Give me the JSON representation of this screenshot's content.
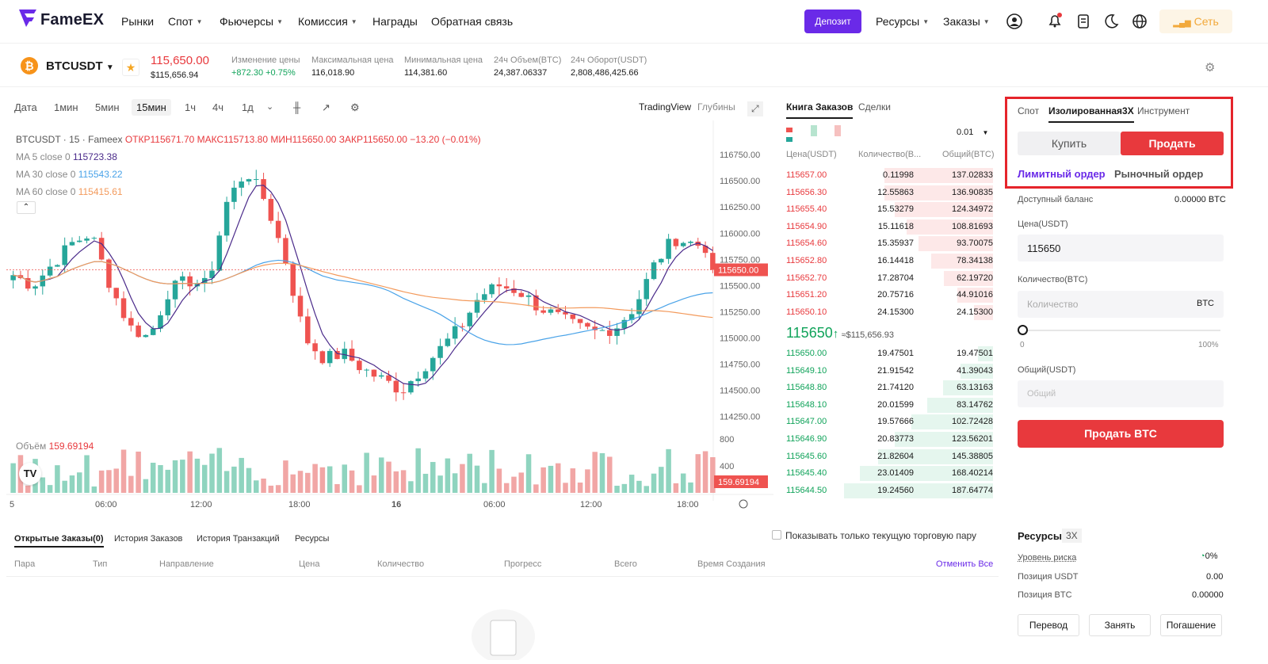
{
  "nav": {
    "brand": "FameEX",
    "items": [
      "Рынки",
      "Спот",
      "Фьючерсы",
      "Комиссия",
      "Награды",
      "Обратная связь"
    ],
    "deposit": "Депозит",
    "resources": "Ресурсы",
    "orders": "Заказы",
    "network": "Сеть"
  },
  "ticker": {
    "symbol": "BTCUSDT",
    "price": "115,650.00",
    "price_usd": "$115,656.94",
    "stats": [
      {
        "label": "Изменение цены",
        "value": "+872.30 +0.75%"
      },
      {
        "label": "Максимальная цена",
        "value": "116,018.90"
      },
      {
        "label": "Минимальная цена",
        "value": "114,381.60"
      },
      {
        "label": "24ч Объем(BTC)",
        "value": "24,387.06337"
      },
      {
        "label": "24ч Оборот(USDT)",
        "value": "2,808,486,425.66"
      }
    ]
  },
  "chart_toolbar": {
    "timeframes": [
      "Дата",
      "1мин",
      "5мин",
      "15мин",
      "1ч",
      "4ч",
      "1д"
    ],
    "active": "15мин",
    "view1": "TradingView",
    "view2": "Глубины"
  },
  "chart_legend": {
    "title": "BTCUSDT · 15 · Fameex",
    "ohlc": "ОТКР115671.70  МАКС115713.80  МИН115650.00  ЗАКР115650.00  −13.20 (−0.01%)",
    "ma5": "MA 5 close 0",
    "ma5_val": "115723.38",
    "ma30": "MA 30 close 0",
    "ma30_val": "115543.22",
    "ma60": "MA 60 close 0",
    "ma60_val": "115415.61",
    "volume_label": "Объём",
    "volume_val": "159.69194"
  },
  "chart_data": {
    "type": "candlestick",
    "price_ticks": [
      "116750.00",
      "116500.00",
      "116250.00",
      "116000.00",
      "115750.00",
      "115500.00",
      "115250.00",
      "115000.00",
      "114750.00",
      "114500.00",
      "114250.00"
    ],
    "vol_ticks": [
      "800",
      "400"
    ],
    "time_ticks": [
      "5",
      "06:00",
      "12:00",
      "18:00",
      "16",
      "06:00",
      "12:00",
      "18:00"
    ],
    "last_price": "115650.00",
    "last_volume": "159.69194",
    "colors": {
      "up": "#26a69a",
      "down": "#ef5350",
      "ma5": "#4a2a8a",
      "ma30": "#4aa3e8",
      "ma60": "#f39a5c"
    }
  },
  "orderbook": {
    "tab1": "Книга Заказов",
    "tab2": "Сделки",
    "precision": "0.01",
    "headers": [
      "Цена(USDT)",
      "Количество(B...",
      "Общий(BTC)"
    ],
    "asks": [
      [
        "115657.00",
        "0.11998",
        "137.02833"
      ],
      [
        "115656.30",
        "12.55863",
        "136.90835"
      ],
      [
        "115655.40",
        "15.53279",
        "124.34972"
      ],
      [
        "115654.90",
        "15.11618",
        "108.81693"
      ],
      [
        "115654.60",
        "15.35937",
        "93.70075"
      ],
      [
        "115652.80",
        "16.14418",
        "78.34138"
      ],
      [
        "115652.70",
        "17.28704",
        "62.19720"
      ],
      [
        "115651.20",
        "20.75716",
        "44.91016"
      ],
      [
        "115650.10",
        "24.15300",
        "24.15300"
      ]
    ],
    "mid_price": "115650",
    "mid_arrow": "↑",
    "mid_usd": "≈$115,656.93",
    "bids": [
      [
        "115650.00",
        "19.47501",
        "19.47501"
      ],
      [
        "115649.10",
        "21.91542",
        "41.39043"
      ],
      [
        "115648.80",
        "21.74120",
        "63.13163"
      ],
      [
        "115648.10",
        "20.01599",
        "83.14762"
      ],
      [
        "115647.00",
        "19.57666",
        "102.72428"
      ],
      [
        "115646.90",
        "20.83773",
        "123.56201"
      ],
      [
        "115645.60",
        "21.82604",
        "145.38805"
      ],
      [
        "115645.40",
        "23.01409",
        "168.40214"
      ],
      [
        "115644.50",
        "19.24560",
        "187.64774"
      ]
    ]
  },
  "trade": {
    "tabs": [
      "Спот",
      "Изолированная3X",
      "Инструмент"
    ],
    "buy": "Купить",
    "sell": "Продать",
    "order_types": [
      "Лимитный ордер",
      "Рыночный ордер"
    ],
    "avail_label": "Доступный баланс",
    "avail_val": "0.00000 BTC",
    "price_label": "Цена(USDT)",
    "price_val": "115650",
    "qty_label": "Количество(BTC)",
    "qty_placeholder": "Количество",
    "qty_unit": "BTC",
    "slider_min": "0",
    "slider_max": "100%",
    "total_label": "Общий(USDT)",
    "total_placeholder": "Общий",
    "submit": "Продать BTC"
  },
  "orders": {
    "tabs": [
      "Открытые Заказы(0)",
      "История Заказов",
      "История Транзакций",
      "Ресурсы"
    ],
    "only_current": "Показывать только текущую торговую пару",
    "columns": [
      "Пара",
      "Тип",
      "Направление",
      "Цена",
      "Количество",
      "Прогресс",
      "Всего",
      "Время Создания"
    ],
    "cancel_all": "Отменить Все"
  },
  "resources": {
    "title": "Ресурсы",
    "badge": "3X",
    "risk_label": "Уровень риска",
    "risk_val": "0%",
    "usdt_label": "Позиция USDT",
    "usdt_val": "0.00",
    "btc_label": "Позиция BTC",
    "btc_val": "0.00000",
    "buttons": [
      "Перевод",
      "Занять",
      "Погашение"
    ]
  }
}
